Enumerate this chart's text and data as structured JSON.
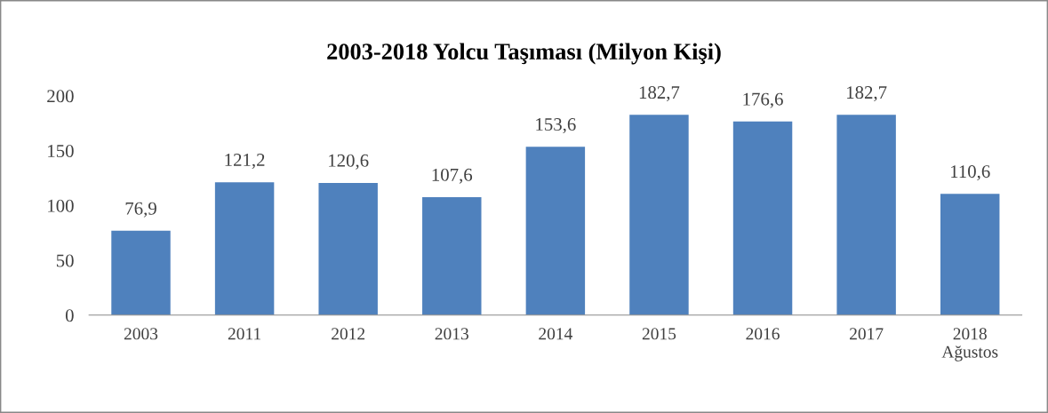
{
  "chart_data": {
    "type": "bar",
    "title": "2003-2018 Yolcu Taşıması (Milyon Kişi)",
    "categories": [
      "2003",
      "2011",
      "2012",
      "2013",
      "2014",
      "2015",
      "2016",
      "2017",
      "2018\nAğustos"
    ],
    "values": [
      76.9,
      121.2,
      120.6,
      107.6,
      153.6,
      182.7,
      176.6,
      182.7,
      110.6
    ],
    "value_labels": [
      "76,9",
      "121,2",
      "120,6",
      "107,6",
      "153,6",
      "182,7",
      "176,6",
      "182,7",
      "110,6"
    ],
    "color": "#4f81bd",
    "ylim": [
      0,
      200
    ],
    "yticks": [
      0,
      50,
      100,
      150,
      200
    ],
    "grid": false,
    "legend": false
  }
}
